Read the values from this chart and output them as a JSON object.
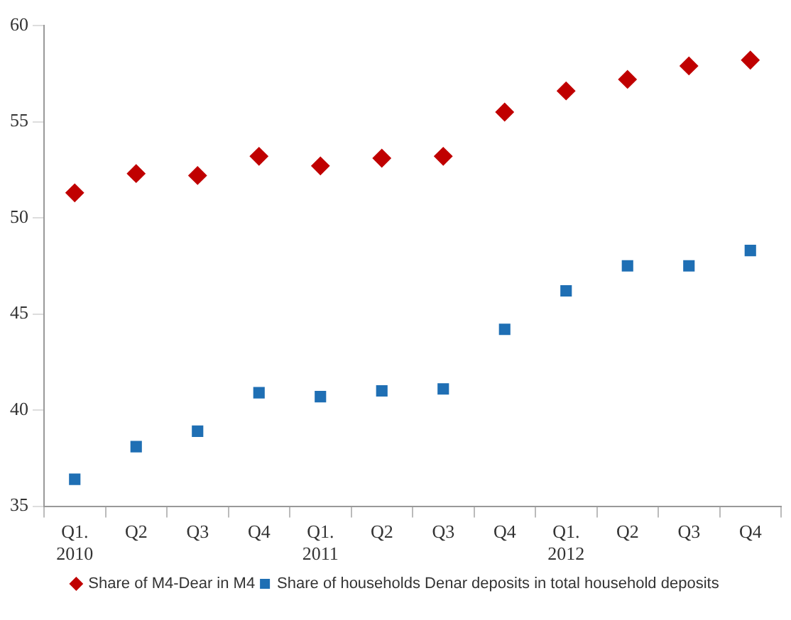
{
  "chart_data": {
    "type": "scatter",
    "categories": [
      "Q1.\n2010",
      "Q2",
      "Q3",
      "Q4",
      "Q1.\n2011",
      "Q2",
      "Q3",
      "Q4",
      "Q1.\n2012",
      "Q2",
      "Q3",
      "Q4"
    ],
    "series": [
      {
        "name": "Share of M4-Dear in M4",
        "color": "#c00000",
        "marker": "diamond",
        "values": [
          51.3,
          52.3,
          52.2,
          53.2,
          52.7,
          53.1,
          53.2,
          55.5,
          56.6,
          57.2,
          57.9,
          58.2
        ]
      },
      {
        "name": "Share of households Denar deposits in total household deposits",
        "color": "#1f6fb4",
        "marker": "square",
        "values": [
          36.4,
          38.1,
          38.9,
          40.9,
          40.7,
          41.0,
          41.1,
          44.2,
          46.2,
          47.5,
          47.5,
          48.3
        ]
      }
    ],
    "ylim": [
      35,
      60
    ],
    "yticks": [
      35,
      40,
      45,
      50,
      55,
      60
    ],
    "grid": false,
    "legend": "bottom"
  }
}
